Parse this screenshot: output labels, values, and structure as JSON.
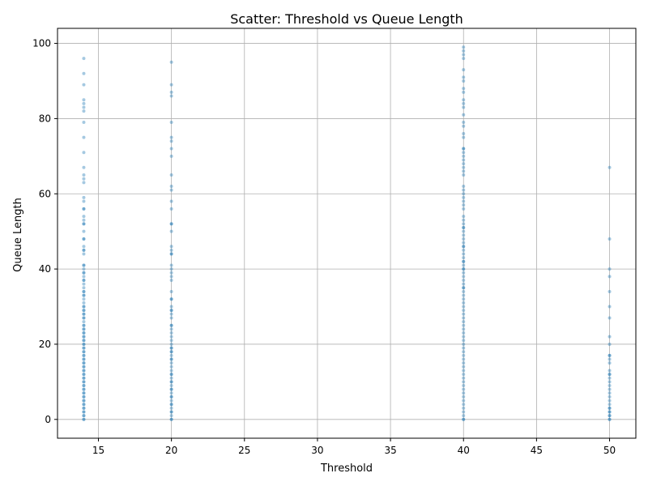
{
  "chart_data": {
    "type": "scatter",
    "title": "Scatter: Threshold vs Queue Length",
    "xlabel": "Threshold",
    "ylabel": "Queue Length",
    "xlim": [
      12.2,
      51.8
    ],
    "ylim": [
      -5,
      104
    ],
    "xticks": [
      15,
      20,
      25,
      30,
      35,
      40,
      45,
      50
    ],
    "yticks": [
      0,
      20,
      40,
      60,
      80,
      100
    ],
    "grid": true,
    "point_color": "#1f77b4",
    "point_opacity": 0.4,
    "series": [
      {
        "x_value": 14,
        "y": [
          96,
          92,
          89,
          85,
          84,
          83,
          82,
          79,
          75,
          71,
          67,
          65,
          64,
          63,
          59,
          58,
          56,
          56,
          54,
          53,
          52,
          52,
          50,
          48,
          48,
          46,
          45,
          45,
          44,
          41,
          41,
          40,
          39,
          39,
          38,
          37,
          37,
          36,
          35,
          34,
          34,
          33,
          33,
          32,
          31,
          30,
          30,
          29,
          29,
          28,
          28,
          27,
          27,
          26,
          25,
          25,
          24,
          24,
          23,
          23,
          22,
          22,
          21,
          21,
          20,
          20,
          19,
          19,
          18,
          18,
          17,
          17,
          16,
          16,
          15,
          15,
          14,
          14,
          13,
          13,
          12,
          12,
          11,
          11,
          10,
          10,
          9,
          9,
          8,
          8,
          7,
          7,
          6,
          6,
          5,
          5,
          4,
          4,
          3,
          3,
          2,
          2,
          1,
          1,
          0,
          0
        ]
      },
      {
        "x_value": 20,
        "y": [
          95,
          89,
          87,
          86,
          79,
          75,
          74,
          72,
          70,
          65,
          62,
          61,
          58,
          56,
          52,
          52,
          50,
          46,
          45,
          44,
          44,
          41,
          40,
          39,
          38,
          37,
          34,
          32,
          32,
          30,
          29,
          29,
          28,
          27,
          25,
          25,
          24,
          23,
          22,
          21,
          20,
          19,
          19,
          18,
          18,
          17,
          16,
          16,
          15,
          14,
          13,
          12,
          12,
          11,
          10,
          10,
          9,
          8,
          8,
          7,
          6,
          6,
          5,
          4,
          4,
          3,
          2,
          2,
          1,
          0,
          0
        ]
      },
      {
        "x_value": 40,
        "y": [
          99,
          98,
          97,
          96,
          93,
          91,
          90,
          88,
          87,
          85,
          84,
          83,
          81,
          79,
          78,
          76,
          75,
          72,
          72,
          71,
          70,
          69,
          68,
          67,
          66,
          65,
          62,
          61,
          60,
          59,
          58,
          57,
          56,
          54,
          53,
          52,
          51,
          51,
          50,
          49,
          48,
          47,
          46,
          46,
          45,
          44,
          43,
          42,
          42,
          41,
          40,
          40,
          39,
          38,
          37,
          36,
          35,
          35,
          34,
          33,
          32,
          31,
          30,
          29,
          28,
          27,
          26,
          25,
          24,
          23,
          22,
          21,
          20,
          19,
          18,
          17,
          16,
          15,
          14,
          13,
          12,
          11,
          10,
          9,
          8,
          7,
          6,
          5,
          4,
          3,
          2,
          1,
          0,
          0
        ]
      },
      {
        "x_value": 50,
        "y": [
          67,
          48,
          40,
          38,
          34,
          30,
          27,
          22,
          20,
          17,
          17,
          16,
          15,
          13,
          12,
          12,
          11,
          10,
          9,
          8,
          7,
          6,
          5,
          4,
          3,
          3,
          2,
          2,
          1,
          1,
          0,
          0
        ]
      }
    ]
  }
}
